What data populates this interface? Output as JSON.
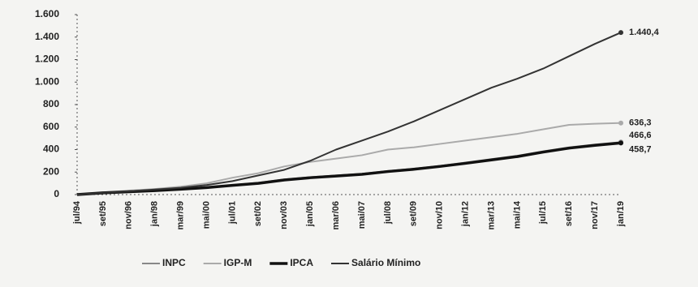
{
  "chart_data": {
    "type": "line",
    "categories": [
      "jul/94",
      "set/95",
      "nov/96",
      "jan/98",
      "mar/99",
      "mai/00",
      "jul/01",
      "set/02",
      "nov/03",
      "jan/05",
      "mar/06",
      "mai/07",
      "jul/08",
      "set/09",
      "nov/10",
      "jan/12",
      "mar/13",
      "mai/14",
      "jul/15",
      "set/16",
      "nov/17",
      "jan/19"
    ],
    "series": [
      {
        "name": "INPC",
        "color": "#888888",
        "values": [
          0,
          15,
          25,
          35,
          50,
          65,
          85,
          105,
          135,
          155,
          170,
          185,
          210,
          230,
          255,
          285,
          315,
          345,
          385,
          420,
          445,
          466.6
        ],
        "value_labels": [
          null,
          null,
          null,
          null,
          null,
          null,
          null,
          null,
          null,
          null,
          null,
          null,
          null,
          null,
          null,
          null,
          null,
          null,
          null,
          null,
          null,
          "466,6"
        ]
      },
      {
        "name": "IGP-M",
        "color": "#aaaaaa",
        "values": [
          0,
          20,
          35,
          50,
          70,
          100,
          150,
          190,
          250,
          290,
          320,
          350,
          400,
          420,
          450,
          480,
          510,
          540,
          580,
          620,
          630,
          636.3
        ],
        "value_labels": [
          null,
          null,
          null,
          null,
          null,
          null,
          null,
          null,
          null,
          null,
          null,
          null,
          null,
          null,
          null,
          null,
          null,
          null,
          null,
          null,
          null,
          "636,3"
        ]
      },
      {
        "name": "IPCA",
        "color": "#111111",
        "values": [
          0,
          15,
          25,
          35,
          48,
          62,
          82,
          100,
          130,
          150,
          165,
          180,
          205,
          225,
          250,
          278,
          308,
          338,
          378,
          413,
          438,
          458.7
        ],
        "value_labels": [
          null,
          null,
          null,
          null,
          null,
          null,
          null,
          null,
          null,
          null,
          null,
          null,
          null,
          null,
          null,
          null,
          null,
          null,
          null,
          null,
          null,
          "458,7"
        ]
      },
      {
        "name": "Salário Mínimo",
        "color": "#333333",
        "values": [
          0,
          15,
          30,
          45,
          60,
          85,
          120,
          170,
          220,
          300,
          400,
          480,
          560,
          650,
          750,
          850,
          950,
          1030,
          1120,
          1230,
          1340,
          1440.4
        ],
        "value_labels": [
          null,
          null,
          null,
          null,
          null,
          null,
          null,
          null,
          null,
          null,
          null,
          null,
          null,
          null,
          null,
          null,
          null,
          null,
          null,
          null,
          null,
          "1.440,4"
        ]
      }
    ],
    "ylim": [
      0,
      1600
    ],
    "yticks": [
      0,
      200,
      400,
      600,
      800,
      {
        "value": 1000,
        "label": "1.000"
      },
      {
        "value": 1200,
        "label": "1.200"
      },
      {
        "value": 1400,
        "label": "1.400"
      },
      {
        "value": 1600,
        "label": "1.600"
      }
    ],
    "grid": false
  }
}
